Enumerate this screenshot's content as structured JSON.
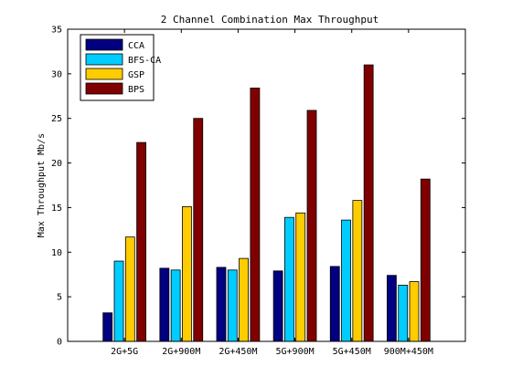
{
  "chart_data": {
    "type": "bar",
    "title": "2 Channel Combination Max Throughput",
    "xlabel": "",
    "ylabel": "Max Throughput Mb/s",
    "ylim": [
      0,
      35
    ],
    "yticks": [
      0,
      5,
      10,
      15,
      20,
      25,
      30,
      35
    ],
    "grid": false,
    "legend_position": "top-left",
    "categories": [
      "2G+5G",
      "2G+900M",
      "2G+450M",
      "5G+900M",
      "5G+450M",
      "900M+450M"
    ],
    "series": [
      {
        "name": "CCA",
        "color": "#000080",
        "values": [
          3.2,
          8.2,
          8.3,
          7.9,
          8.4,
          7.4
        ]
      },
      {
        "name": "BFS-CA",
        "color": "#00CCFF",
        "values": [
          9.0,
          8.0,
          8.0,
          13.9,
          13.6,
          6.3
        ]
      },
      {
        "name": "GSP",
        "color": "#FFCC00",
        "values": [
          11.7,
          15.1,
          9.3,
          14.4,
          15.8,
          6.7
        ]
      },
      {
        "name": "BPS",
        "color": "#800000",
        "values": [
          22.3,
          25.0,
          28.4,
          25.9,
          31.0,
          18.2
        ]
      }
    ]
  }
}
